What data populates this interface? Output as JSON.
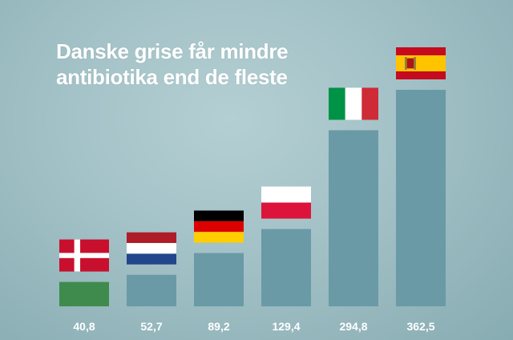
{
  "title_lines": [
    "Danske grise får mindre",
    "antibiotika end de fleste"
  ],
  "colors": {
    "bar": "#6a9aa6",
    "highlight_bar": "#3f8b4d",
    "value_label": "#ffffff"
  },
  "chart_data": {
    "type": "bar",
    "title": "Danske grise får mindre antibiotika end de fleste",
    "xlabel": "",
    "ylabel": "",
    "grid": false,
    "ylim": [
      0,
      362.5
    ],
    "categories": [
      "Danmark",
      "Holland",
      "Tyskland",
      "Polen",
      "Italien",
      "Spanien"
    ],
    "flags": [
      "denmark-flag",
      "netherlands-flag",
      "germany-flag",
      "poland-flag",
      "italy-flag",
      "spain-flag"
    ],
    "values": [
      40.8,
      52.7,
      89.2,
      129.4,
      294.8,
      362.5
    ],
    "value_labels": [
      "40,8",
      "52,7",
      "89,2",
      "129,4",
      "294,8",
      "362,5"
    ],
    "highlight_index": 0
  }
}
